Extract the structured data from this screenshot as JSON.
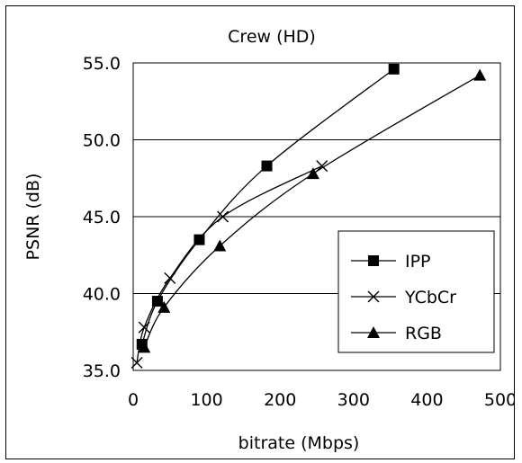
{
  "chart_data": {
    "type": "line",
    "title": "Crew (HD)",
    "xlabel": "bitrate (Mbps)",
    "ylabel": "PSNR (dB)",
    "xlim": [
      0,
      500
    ],
    "ylim": [
      35.0,
      55.0
    ],
    "xticks": [
      "0",
      "100",
      "200",
      "300",
      "400",
      "500"
    ],
    "yticks": [
      "35.0",
      "40.0",
      "45.0",
      "50.0",
      "55.0"
    ],
    "grid": "horizontal major gridlines",
    "legend_position": "bottom-right",
    "series": [
      {
        "name": "IPP",
        "marker": "square",
        "points": [
          [
            12,
            36.7
          ],
          [
            33,
            39.5
          ],
          [
            90,
            43.5
          ],
          [
            182,
            48.3
          ],
          [
            355,
            54.6
          ]
        ]
      },
      {
        "name": "YCbCr",
        "marker": "x",
        "points": [
          [
            5,
            35.5
          ],
          [
            15,
            37.8
          ],
          [
            50,
            41.0
          ],
          [
            122,
            45.0
          ],
          [
            257,
            48.3
          ]
        ]
      },
      {
        "name": "RGB",
        "marker": "triangle",
        "points": [
          [
            15,
            36.5
          ],
          [
            42,
            39.1
          ],
          [
            118,
            43.1
          ],
          [
            245,
            47.8
          ],
          [
            472,
            54.2
          ]
        ]
      }
    ]
  }
}
